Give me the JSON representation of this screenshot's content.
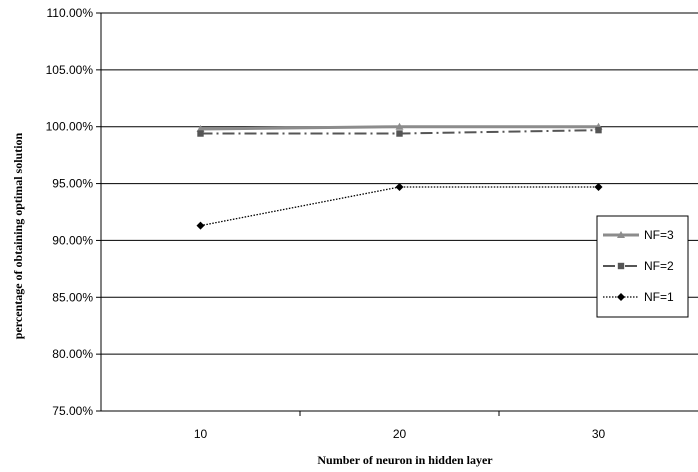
{
  "chart_data": {
    "type": "line",
    "title": "",
    "xlabel": "Number of neuron in hidden layer",
    "ylabel": "percentage of obtaining optimal solution",
    "categories": [
      "10",
      "20",
      "30"
    ],
    "yticks": [
      "75.00%",
      "80.00%",
      "85.00%",
      "90.00%",
      "95.00%",
      "100.00%",
      "105.00%",
      "110.00%"
    ],
    "ylim": [
      75,
      110
    ],
    "grid": true,
    "legend_position": "right",
    "series": [
      {
        "name": "NF=3",
        "values": [
          99.8,
          100.0,
          100.0
        ],
        "color": "#8c8c8c",
        "marker": "triangle",
        "dash": "solid"
      },
      {
        "name": "NF=2",
        "values": [
          99.4,
          99.4,
          99.7
        ],
        "color": "#555555",
        "marker": "square",
        "dash": "dashdot"
      },
      {
        "name": "NF=1",
        "values": [
          91.3,
          94.7,
          94.7
        ],
        "color": "#000000",
        "marker": "diamond",
        "dash": "dotted"
      }
    ]
  }
}
